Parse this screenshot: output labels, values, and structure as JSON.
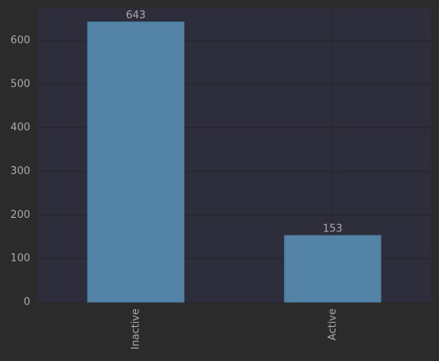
{
  "chart_data": {
    "type": "bar",
    "categories": [
      "Inactive",
      "Active"
    ],
    "values": [
      643,
      153
    ],
    "color": "#5383a6",
    "ylim": [
      0,
      675
    ],
    "yticks": [
      0,
      100,
      200,
      300,
      400,
      500,
      600
    ],
    "grid": true
  }
}
